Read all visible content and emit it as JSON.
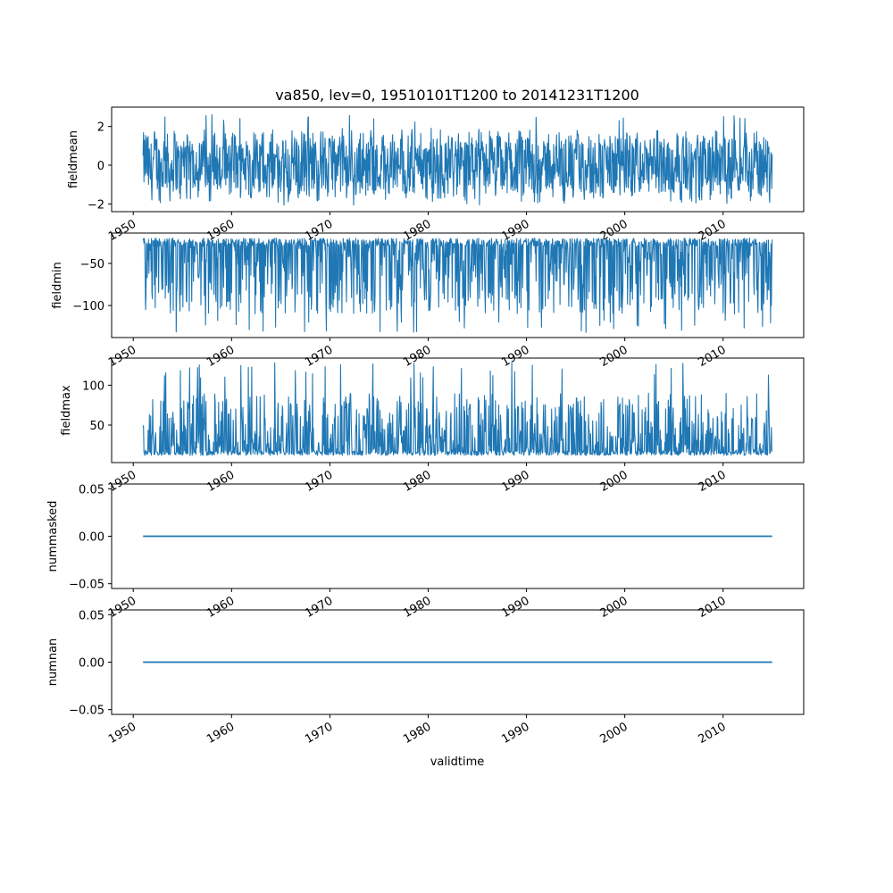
{
  "title": "va850, lev=0, 19510101T1200 to 20141231T1200",
  "xlabel": "validtime",
  "series_color": "#1f77b4",
  "chart_data": [
    {
      "type": "line",
      "ylabel": "fieldmean",
      "x_range": [
        "1951-01-01",
        "2014-12-31"
      ],
      "xlim": [
        1947.8,
        2018.2
      ],
      "ylim": [
        -2.4,
        3.0
      ],
      "yticks": [
        {
          "v": -2,
          "label": "−2"
        },
        {
          "v": 0,
          "label": "0"
        },
        {
          "v": 2,
          "label": "2"
        }
      ],
      "y_center": 0.0,
      "y_min": -2.1,
      "y_max": 2.7,
      "y_typical_range": [
        -1.6,
        1.8
      ]
    },
    {
      "type": "line",
      "ylabel": "fieldmin",
      "x_range": [
        "1951-01-01",
        "2014-12-31"
      ],
      "xlim": [
        1947.8,
        2018.2
      ],
      "ylim": [
        -138,
        -14
      ],
      "yticks": [
        {
          "v": -100,
          "label": "−100"
        },
        {
          "v": -50,
          "label": "−50"
        }
      ],
      "y_min": -132,
      "y_max": -18,
      "y_typical_range": [
        -110,
        -20
      ]
    },
    {
      "type": "line",
      "ylabel": "fieldmax",
      "x_range": [
        "1951-01-01",
        "2014-12-31"
      ],
      "xlim": [
        1947.8,
        2018.2
      ],
      "ylim": [
        3,
        134
      ],
      "yticks": [
        {
          "v": 50,
          "label": "50"
        },
        {
          "v": 100,
          "label": "100"
        }
      ],
      "y_min": 9,
      "y_max": 129,
      "y_typical_range": [
        12,
        90
      ]
    },
    {
      "type": "line",
      "ylabel": "nummasked",
      "x_range": [
        "1951-01-01",
        "2014-12-31"
      ],
      "xlim": [
        1947.8,
        2018.2
      ],
      "ylim": [
        -0.055,
        0.055
      ],
      "yticks": [
        {
          "v": -0.05,
          "label": "−0.05"
        },
        {
          "v": 0,
          "label": "0.00"
        },
        {
          "v": 0.05,
          "label": "0.05"
        }
      ],
      "y_constant": 0
    },
    {
      "type": "line",
      "ylabel": "numnan",
      "x_range": [
        "1951-01-01",
        "2014-12-31"
      ],
      "xlim": [
        1947.8,
        2018.2
      ],
      "ylim": [
        -0.055,
        0.055
      ],
      "yticks": [
        {
          "v": -0.05,
          "label": "−0.05"
        },
        {
          "v": 0,
          "label": "0.00"
        },
        {
          "v": 0.05,
          "label": "0.05"
        }
      ],
      "y_constant": 0
    }
  ],
  "xticks": [
    "1950",
    "1960",
    "1970",
    "1980",
    "1990",
    "2000",
    "2010"
  ]
}
